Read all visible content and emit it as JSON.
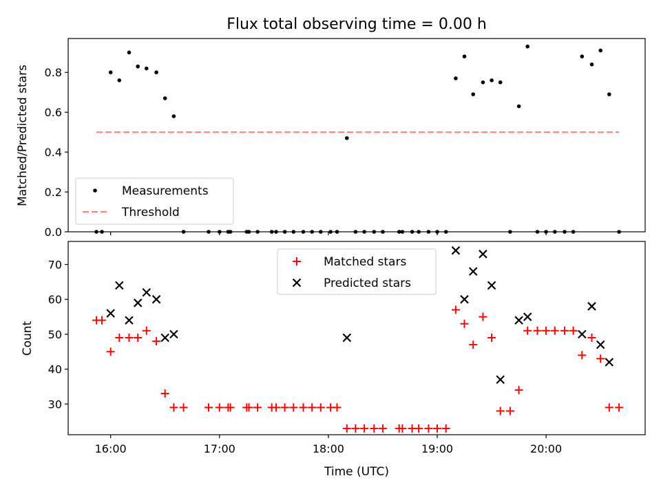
{
  "chart_data": [
    {
      "type": "scatter",
      "title": "Flux total observing time = 0.00 h",
      "xlabel": "",
      "ylabel": "Matched/Predicted stars",
      "ylim": [
        0,
        0.97
      ],
      "yticks": [
        "0.0",
        "0.2",
        "0.4",
        "0.6",
        "0.8"
      ],
      "xlim_hours": [
        15.61,
        20.91
      ],
      "legend_placement": "lower-left",
      "series": [
        {
          "name": "Measurements",
          "kind": "points",
          "color": "#000000",
          "points": [
            [
              15.87,
              0.0
            ],
            [
              15.92,
              0.0
            ],
            [
              16.0,
              0.8
            ],
            [
              16.08,
              0.76
            ],
            [
              16.17,
              0.9
            ],
            [
              16.25,
              0.83
            ],
            [
              16.33,
              0.82
            ],
            [
              16.42,
              0.8
            ],
            [
              16.5,
              0.67
            ],
            [
              16.58,
              0.58
            ],
            [
              16.67,
              0.0
            ],
            [
              16.9,
              0.0
            ],
            [
              17.0,
              0.0
            ],
            [
              17.08,
              0.0
            ],
            [
              17.1,
              0.0
            ],
            [
              17.25,
              0.0
            ],
            [
              17.27,
              0.0
            ],
            [
              17.35,
              0.0
            ],
            [
              17.48,
              0.0
            ],
            [
              17.52,
              0.0
            ],
            [
              17.6,
              0.0
            ],
            [
              17.68,
              0.0
            ],
            [
              17.77,
              0.0
            ],
            [
              17.85,
              0.0
            ],
            [
              17.93,
              0.0
            ],
            [
              18.02,
              0.0
            ],
            [
              18.08,
              0.0
            ],
            [
              18.17,
              0.47
            ],
            [
              18.25,
              0.0
            ],
            [
              18.33,
              0.0
            ],
            [
              18.42,
              0.0
            ],
            [
              18.5,
              0.0
            ],
            [
              18.65,
              0.0
            ],
            [
              18.68,
              0.0
            ],
            [
              18.77,
              0.0
            ],
            [
              18.83,
              0.0
            ],
            [
              18.92,
              0.0
            ],
            [
              19.0,
              0.0
            ],
            [
              19.08,
              0.0
            ],
            [
              19.17,
              0.77
            ],
            [
              19.25,
              0.88
            ],
            [
              19.33,
              0.69
            ],
            [
              19.42,
              0.75
            ],
            [
              19.5,
              0.76
            ],
            [
              19.58,
              0.75
            ],
            [
              19.67,
              0.0
            ],
            [
              19.75,
              0.63
            ],
            [
              19.83,
              0.93
            ],
            [
              19.92,
              0.0
            ],
            [
              20.0,
              0.0
            ],
            [
              20.08,
              0.0
            ],
            [
              20.17,
              0.0
            ],
            [
              20.25,
              0.0
            ],
            [
              20.33,
              0.88
            ],
            [
              20.42,
              0.84
            ],
            [
              20.5,
              0.91
            ],
            [
              20.58,
              0.69
            ],
            [
              20.67,
              0.0
            ]
          ]
        },
        {
          "name": "Threshold",
          "kind": "dashed-line",
          "color": "#ff8080",
          "points": [
            [
              15.87,
              0.5
            ],
            [
              20.67,
              0.5
            ]
          ]
        }
      ]
    },
    {
      "type": "scatter",
      "title": "",
      "xlabel": "Time (UTC)",
      "ylabel": "Count",
      "ylim": [
        21.2,
        76.6
      ],
      "yticks": [
        "30",
        "40",
        "50",
        "60",
        "70"
      ],
      "xlim_hours": [
        15.61,
        20.91
      ],
      "xticks": [
        "16:00",
        "17:00",
        "18:00",
        "19:00",
        "20:00"
      ],
      "legend_placement": "upper-center",
      "series": [
        {
          "name": "Matched stars",
          "kind": "plus",
          "color": "#ff0000",
          "points": [
            [
              15.87,
              54
            ],
            [
              15.92,
              54
            ],
            [
              16.0,
              45
            ],
            [
              16.08,
              49
            ],
            [
              16.17,
              49
            ],
            [
              16.25,
              49
            ],
            [
              16.33,
              51
            ],
            [
              16.42,
              48
            ],
            [
              16.5,
              33
            ],
            [
              16.58,
              29
            ],
            [
              16.67,
              29
            ],
            [
              16.9,
              29
            ],
            [
              17.0,
              29
            ],
            [
              17.08,
              29
            ],
            [
              17.1,
              29
            ],
            [
              17.25,
              29
            ],
            [
              17.27,
              29
            ],
            [
              17.35,
              29
            ],
            [
              17.48,
              29
            ],
            [
              17.52,
              29
            ],
            [
              17.6,
              29
            ],
            [
              17.68,
              29
            ],
            [
              17.77,
              29
            ],
            [
              17.85,
              29
            ],
            [
              17.93,
              29
            ],
            [
              18.02,
              29
            ],
            [
              18.08,
              29
            ],
            [
              18.17,
              23
            ],
            [
              18.25,
              23
            ],
            [
              18.33,
              23
            ],
            [
              18.42,
              23
            ],
            [
              18.5,
              23
            ],
            [
              18.65,
              23
            ],
            [
              18.68,
              23
            ],
            [
              18.77,
              23
            ],
            [
              18.83,
              23
            ],
            [
              18.92,
              23
            ],
            [
              19.0,
              23
            ],
            [
              19.08,
              23
            ],
            [
              19.17,
              57
            ],
            [
              19.25,
              53
            ],
            [
              19.33,
              47
            ],
            [
              19.42,
              55
            ],
            [
              19.5,
              49
            ],
            [
              19.58,
              28
            ],
            [
              19.67,
              28
            ],
            [
              19.75,
              34
            ],
            [
              19.83,
              51
            ],
            [
              19.92,
              51
            ],
            [
              20.0,
              51
            ],
            [
              20.08,
              51
            ],
            [
              20.17,
              51
            ],
            [
              20.25,
              51
            ],
            [
              20.33,
              44
            ],
            [
              20.42,
              49
            ],
            [
              20.5,
              43
            ],
            [
              20.58,
              29
            ],
            [
              20.67,
              29
            ]
          ]
        },
        {
          "name": "Predicted stars",
          "kind": "x",
          "color": "#000000",
          "points": [
            [
              16.0,
              56
            ],
            [
              16.08,
              64
            ],
            [
              16.17,
              54
            ],
            [
              16.25,
              59
            ],
            [
              16.33,
              62
            ],
            [
              16.42,
              60
            ],
            [
              16.5,
              49
            ],
            [
              16.58,
              50
            ],
            [
              18.17,
              49
            ],
            [
              19.17,
              74
            ],
            [
              19.25,
              60
            ],
            [
              19.33,
              68
            ],
            [
              19.42,
              73
            ],
            [
              19.5,
              64
            ],
            [
              19.58,
              37
            ],
            [
              19.75,
              54
            ],
            [
              19.83,
              55
            ],
            [
              20.33,
              50
            ],
            [
              20.42,
              58
            ],
            [
              20.5,
              47
            ],
            [
              20.58,
              42
            ]
          ]
        }
      ]
    }
  ]
}
